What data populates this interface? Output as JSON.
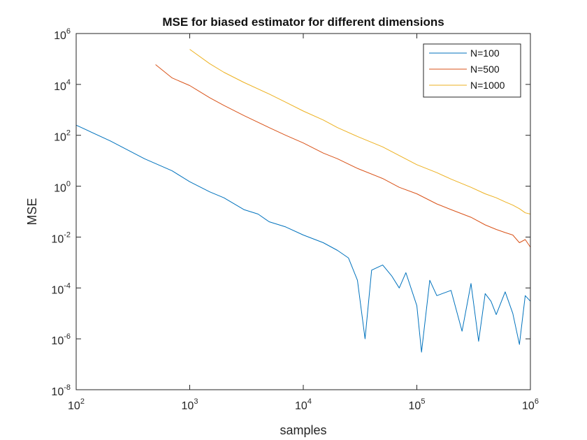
{
  "chart_data": {
    "type": "line",
    "title": "MSE for biased estimator for different dimensions",
    "xlabel": "samples",
    "ylabel": "MSE",
    "xscale": "log",
    "yscale": "log",
    "xlim": [
      100,
      1000000
    ],
    "ylim": [
      1e-08,
      1000000
    ],
    "xticks": [
      {
        "base": "10",
        "exp": "2"
      },
      {
        "base": "10",
        "exp": "3"
      },
      {
        "base": "10",
        "exp": "4"
      },
      {
        "base": "10",
        "exp": "5"
      },
      {
        "base": "10",
        "exp": "6"
      }
    ],
    "yticks": [
      {
        "base": "10",
        "exp": "-8"
      },
      {
        "base": "10",
        "exp": "-6"
      },
      {
        "base": "10",
        "exp": "-4"
      },
      {
        "base": "10",
        "exp": "-2"
      },
      {
        "base": "10",
        "exp": "0"
      },
      {
        "base": "10",
        "exp": "2"
      },
      {
        "base": "10",
        "exp": "4"
      },
      {
        "base": "10",
        "exp": "6"
      }
    ],
    "grid": false,
    "legend_position": "top-right",
    "series": [
      {
        "name": "N=100",
        "color": "#0072BD",
        "x": [
          100,
          200,
          400,
          700,
          1000,
          1500,
          2000,
          3000,
          4000,
          5000,
          7000,
          10000,
          15000,
          20000,
          25000,
          30000,
          35000,
          40000,
          50000,
          60000,
          70000,
          80000,
          100000,
          110000,
          130000,
          150000,
          200000,
          250000,
          300000,
          350000,
          400000,
          450000,
          500000,
          600000,
          700000,
          800000,
          900000,
          1000000
        ],
        "y": [
          250,
          60,
          12,
          4,
          1.5,
          0.6,
          0.35,
          0.12,
          0.08,
          0.04,
          0.025,
          0.012,
          0.006,
          0.003,
          0.0015,
          0.0002,
          1e-06,
          0.0005,
          0.0008,
          0.0003,
          0.0001,
          0.0004,
          2e-05,
          3e-07,
          0.0002,
          5e-05,
          8e-05,
          2e-06,
          0.00015,
          8e-07,
          6e-05,
          3e-05,
          9e-06,
          7e-05,
          1e-05,
          6e-07,
          5e-05,
          3e-05
        ]
      },
      {
        "name": "N=500",
        "color": "#D95319",
        "x": [
          500,
          700,
          1000,
          1500,
          2000,
          3000,
          5000,
          7000,
          10000,
          15000,
          20000,
          30000,
          50000,
          70000,
          100000,
          150000,
          200000,
          300000,
          400000,
          500000,
          600000,
          700000,
          800000,
          900000,
          1000000
        ],
        "y": [
          60000,
          18000,
          9000,
          3000,
          1500,
          600,
          200,
          100,
          50,
          20,
          12,
          5,
          2,
          0.9,
          0.5,
          0.2,
          0.12,
          0.06,
          0.03,
          0.02,
          0.015,
          0.012,
          0.006,
          0.008,
          0.004
        ]
      },
      {
        "name": "N=1000",
        "color": "#EDB120",
        "x": [
          1000,
          1500,
          2000,
          3000,
          5000,
          7000,
          10000,
          15000,
          20000,
          30000,
          50000,
          70000,
          100000,
          150000,
          200000,
          300000,
          400000,
          500000,
          600000,
          700000,
          800000,
          900000,
          1000000
        ],
        "y": [
          240000,
          65000,
          30000,
          12000,
          4200,
          2000,
          900,
          400,
          200,
          90,
          35,
          16,
          7,
          3.4,
          1.9,
          0.9,
          0.5,
          0.35,
          0.24,
          0.18,
          0.13,
          0.09,
          0.08
        ]
      }
    ]
  }
}
